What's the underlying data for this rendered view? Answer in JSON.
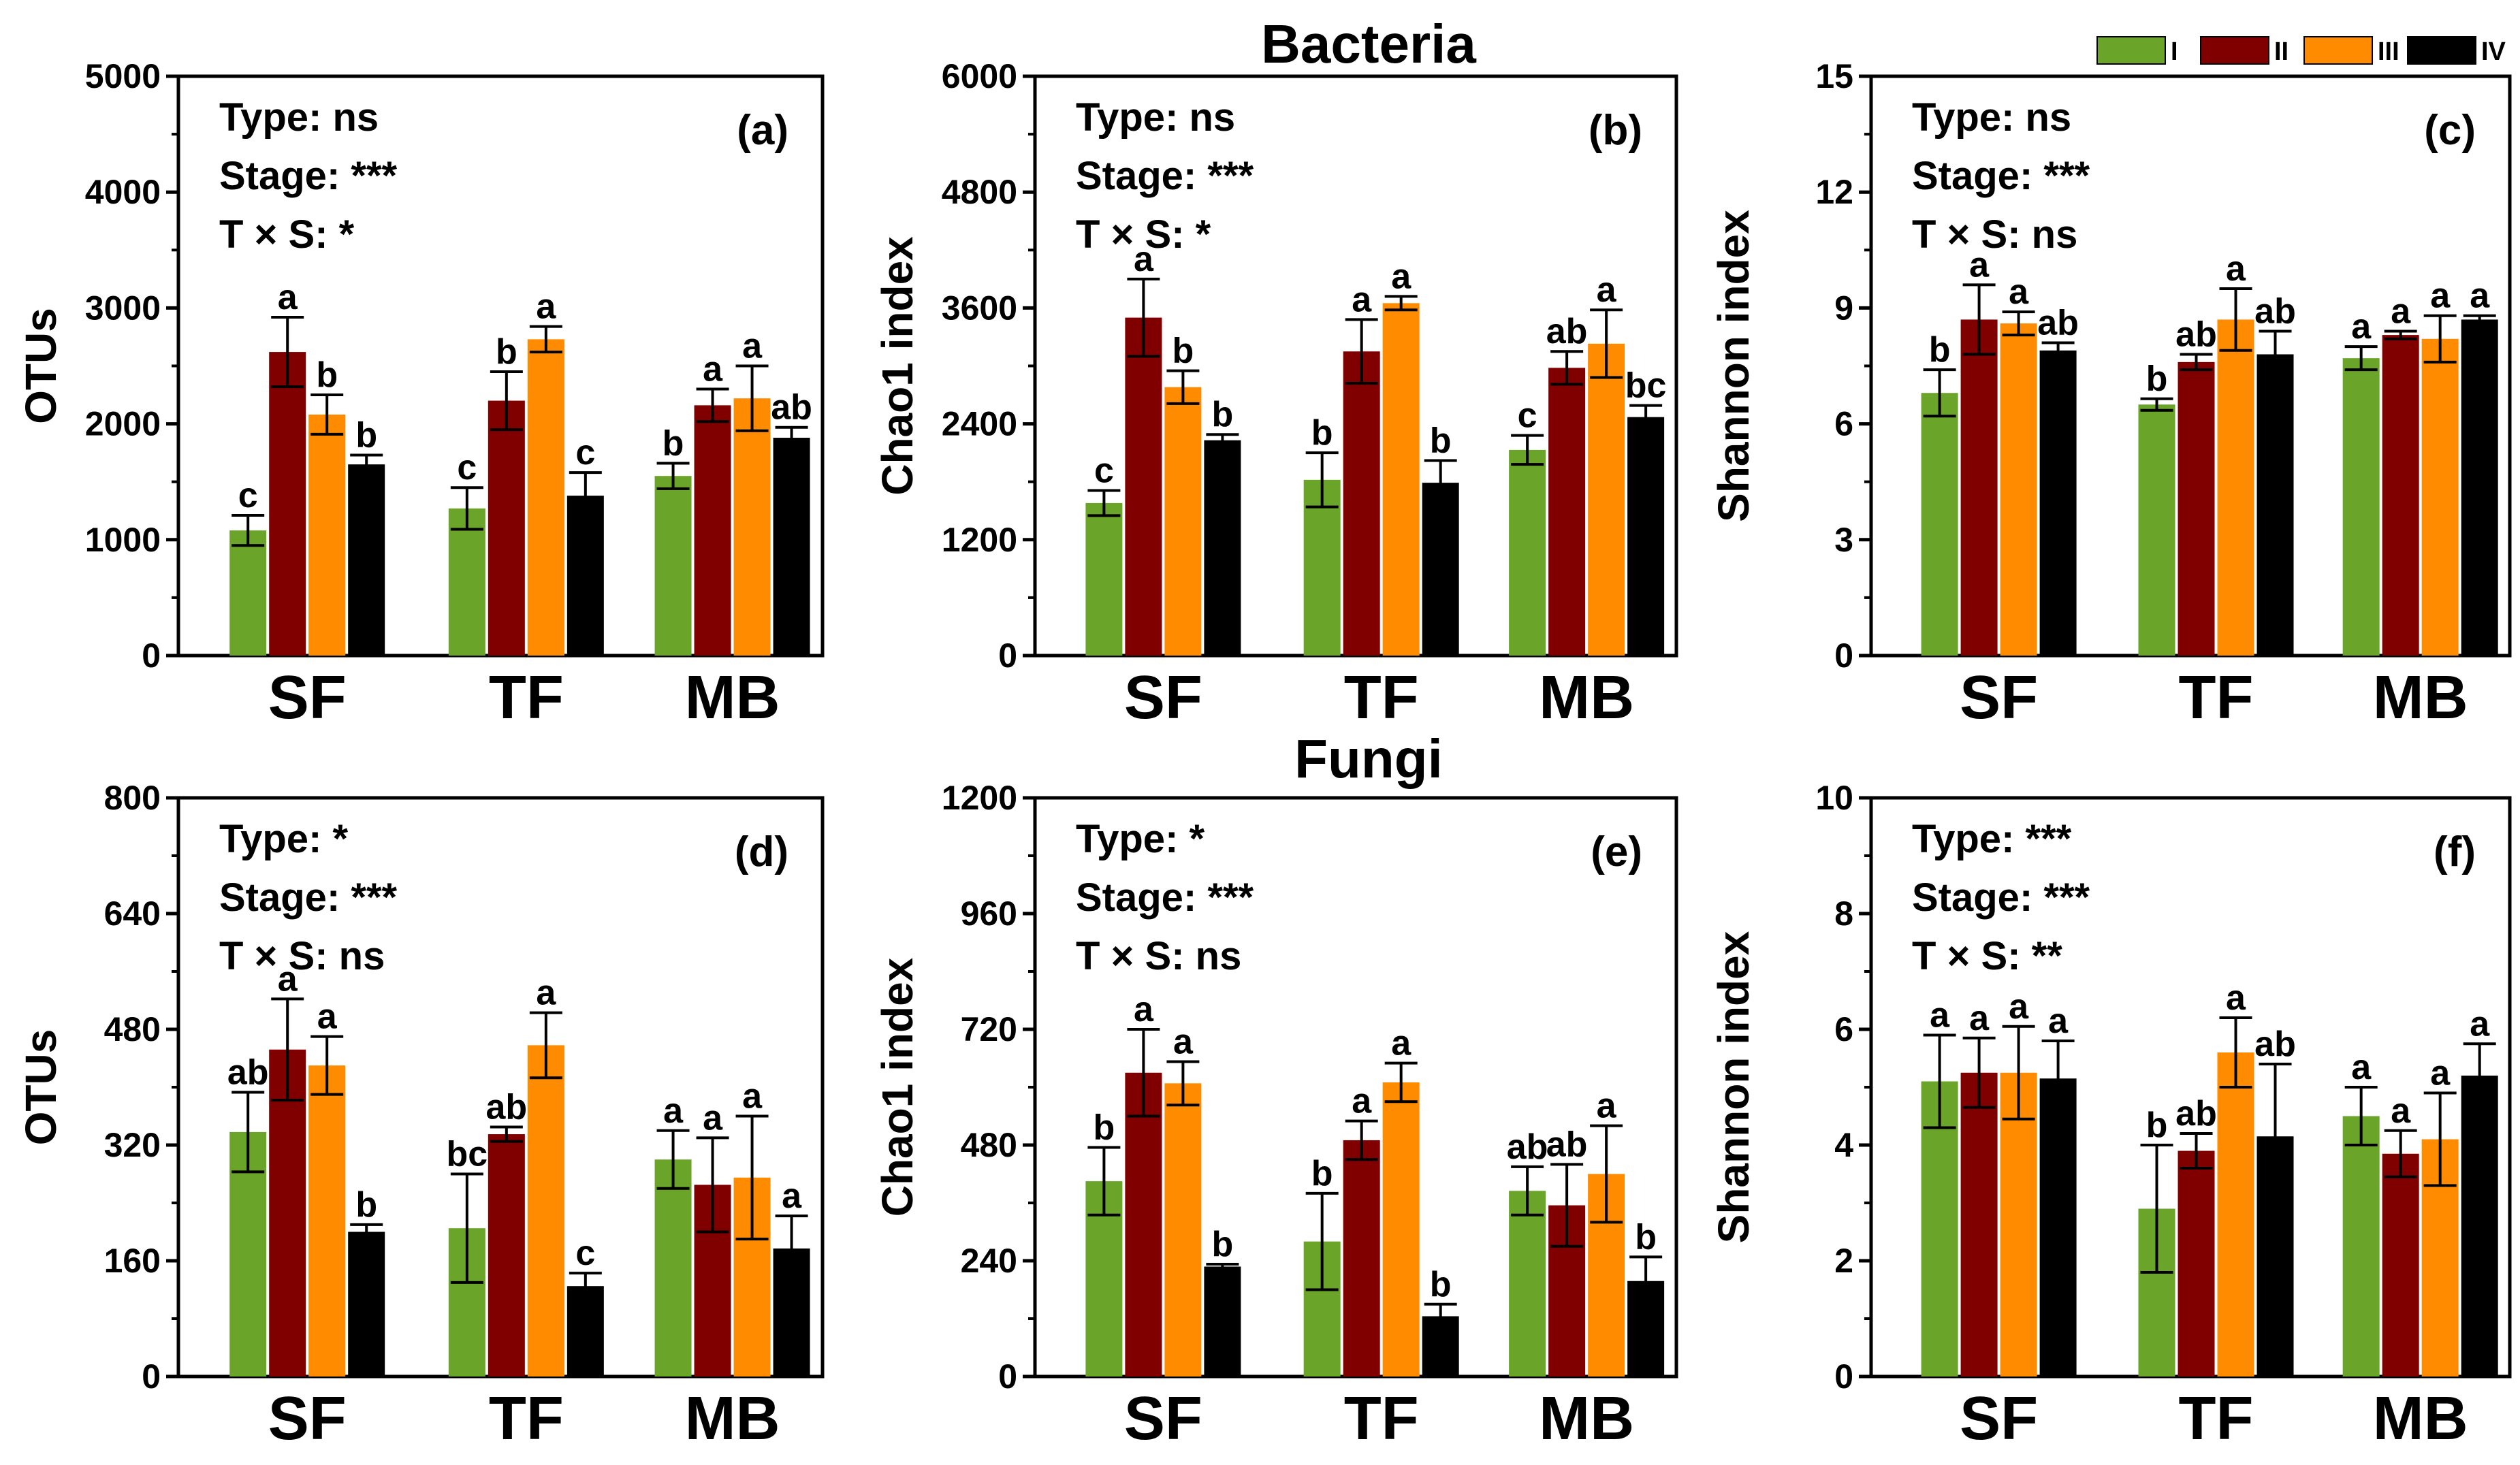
{
  "section_titles": {
    "bacteria": "Bacteria",
    "fungi": "Fungi"
  },
  "legend": [
    {
      "label": "I",
      "color": "#6aa52a"
    },
    {
      "label": "II",
      "color": "#800000"
    },
    {
      "label": "III",
      "color": "#ff8c00"
    },
    {
      "label": "IV",
      "color": "#000000"
    }
  ],
  "colors": {
    "I": "#6aa52a",
    "II": "#800000",
    "III": "#ff8c00",
    "IV": "#000000",
    "background": "#ffffff",
    "axis": "#000000"
  },
  "chart_data": [
    {
      "type": "bar",
      "panel": "(a)",
      "section": "Bacteria",
      "ylabel": "OTUs",
      "ylim": [
        0,
        5000
      ],
      "yticks": [
        "0",
        "1000",
        "2000",
        "3000",
        "4000",
        "5000"
      ],
      "categories": [
        "SF",
        "TF",
        "MB"
      ],
      "stats": [
        "Type: ns",
        "Stage: ***",
        "T × S: *"
      ],
      "series": [
        {
          "name": "I",
          "values": [
            1080,
            1270,
            1550
          ],
          "errors": [
            130,
            180,
            110
          ],
          "letters": [
            "c",
            "c",
            "b"
          ]
        },
        {
          "name": "II",
          "values": [
            2620,
            2200,
            2160
          ],
          "errors": [
            300,
            250,
            140
          ],
          "letters": [
            "a",
            "b",
            "a"
          ]
        },
        {
          "name": "III",
          "values": [
            2080,
            2730,
            2220
          ],
          "errors": [
            170,
            110,
            280
          ],
          "letters": [
            "b",
            "a",
            "a"
          ]
        },
        {
          "name": "IV",
          "values": [
            1650,
            1380,
            1880
          ],
          "errors": [
            80,
            200,
            90
          ],
          "letters": [
            "b",
            "c",
            "ab"
          ]
        }
      ]
    },
    {
      "type": "bar",
      "panel": "(b)",
      "section": "Bacteria",
      "ylabel": "Chao1 index",
      "ylim": [
        0,
        6000
      ],
      "yticks": [
        "0",
        "1200",
        "2400",
        "3600",
        "4800",
        "6000"
      ],
      "categories": [
        "SF",
        "TF",
        "MB"
      ],
      "stats": [
        "Type: ns",
        "Stage: ***",
        "T × S: *"
      ],
      "series": [
        {
          "name": "I",
          "values": [
            1580,
            1820,
            2130
          ],
          "errors": [
            130,
            280,
            150
          ],
          "letters": [
            "c",
            "b",
            "c"
          ]
        },
        {
          "name": "II",
          "values": [
            3500,
            3150,
            2980
          ],
          "errors": [
            400,
            330,
            170
          ],
          "letters": [
            "a",
            "a",
            "ab"
          ]
        },
        {
          "name": "III",
          "values": [
            2780,
            3650,
            3230
          ],
          "errors": [
            170,
            70,
            350
          ],
          "letters": [
            "b",
            "a",
            "a"
          ]
        },
        {
          "name": "IV",
          "values": [
            2230,
            1790,
            2470
          ],
          "errors": [
            60,
            230,
            120
          ],
          "letters": [
            "b",
            "b",
            "bc"
          ]
        }
      ]
    },
    {
      "type": "bar",
      "panel": "(c)",
      "section": "Bacteria",
      "ylabel": "Shannon index",
      "ylim": [
        0,
        15
      ],
      "yticks": [
        "0",
        "3",
        "6",
        "9",
        "12",
        "15"
      ],
      "categories": [
        "SF",
        "TF",
        "MB"
      ],
      "stats": [
        "Type: ns",
        "Stage: ***",
        "T × S: ns"
      ],
      "series": [
        {
          "name": "I",
          "values": [
            6.8,
            6.5,
            7.7
          ],
          "errors": [
            0.6,
            0.15,
            0.3
          ],
          "letters": [
            "b",
            "b",
            "a"
          ]
        },
        {
          "name": "II",
          "values": [
            8.7,
            7.6,
            8.3
          ],
          "errors": [
            0.9,
            0.2,
            0.1
          ],
          "letters": [
            "a",
            "ab",
            "a"
          ]
        },
        {
          "name": "III",
          "values": [
            8.6,
            8.7,
            8.2
          ],
          "errors": [
            0.3,
            0.8,
            0.6
          ],
          "letters": [
            "a",
            "a",
            "a"
          ]
        },
        {
          "name": "IV",
          "values": [
            7.9,
            7.8,
            8.7
          ],
          "errors": [
            0.2,
            0.6,
            0.1
          ],
          "letters": [
            "ab",
            "ab",
            "a"
          ]
        }
      ]
    },
    {
      "type": "bar",
      "panel": "(d)",
      "section": "Fungi",
      "ylabel": "OTUs",
      "ylim": [
        0,
        800
      ],
      "yticks": [
        "0",
        "160",
        "320",
        "480",
        "640",
        "800"
      ],
      "categories": [
        "SF",
        "TF",
        "MB"
      ],
      "stats": [
        "Type: *",
        "Stage: ***",
        "T × S: ns"
      ],
      "series": [
        {
          "name": "I",
          "values": [
            338,
            205,
            300
          ],
          "errors": [
            55,
            75,
            40
          ],
          "letters": [
            "ab",
            "bc",
            "a"
          ]
        },
        {
          "name": "II",
          "values": [
            452,
            335,
            265
          ],
          "errors": [
            70,
            10,
            65
          ],
          "letters": [
            "a",
            "ab",
            "a"
          ]
        },
        {
          "name": "III",
          "values": [
            430,
            458,
            275
          ],
          "errors": [
            40,
            45,
            85
          ],
          "letters": [
            "a",
            "a",
            "a"
          ]
        },
        {
          "name": "IV",
          "values": [
            200,
            125,
            177
          ],
          "errors": [
            10,
            18,
            45
          ],
          "letters": [
            "b",
            "c",
            "a"
          ]
        }
      ]
    },
    {
      "type": "bar",
      "panel": "(e)",
      "section": "Fungi",
      "ylabel": "Chao1 index",
      "ylim": [
        0,
        1200
      ],
      "yticks": [
        "0",
        "240",
        "480",
        "720",
        "960",
        "1200"
      ],
      "categories": [
        "SF",
        "TF",
        "MB"
      ],
      "stats": [
        "Type: *",
        "Stage: ***",
        "T × S: ns"
      ],
      "series": [
        {
          "name": "I",
          "values": [
            405,
            280,
            385
          ],
          "errors": [
            70,
            100,
            50
          ],
          "letters": [
            "b",
            "b",
            "ab"
          ]
        },
        {
          "name": "II",
          "values": [
            630,
            490,
            355
          ],
          "errors": [
            90,
            40,
            85
          ],
          "letters": [
            "a",
            "a",
            "ab"
          ]
        },
        {
          "name": "III",
          "values": [
            608,
            610,
            420
          ],
          "errors": [
            45,
            40,
            100
          ],
          "letters": [
            "a",
            "a",
            "a"
          ]
        },
        {
          "name": "IV",
          "values": [
            228,
            125,
            198
          ],
          "errors": [
            5,
            25,
            50
          ],
          "letters": [
            "b",
            "b",
            "b"
          ]
        }
      ]
    },
    {
      "type": "bar",
      "panel": "(f)",
      "section": "Fungi",
      "ylabel": "Shannon index",
      "ylim": [
        0,
        10
      ],
      "yticks": [
        "0",
        "2",
        "4",
        "6",
        "8",
        "10"
      ],
      "categories": [
        "SF",
        "TF",
        "MB"
      ],
      "stats": [
        "Type: ***",
        "Stage: ***",
        "T × S: **"
      ],
      "series": [
        {
          "name": "I",
          "values": [
            5.1,
            2.9,
            4.5
          ],
          "errors": [
            0.8,
            1.1,
            0.5
          ],
          "letters": [
            "a",
            "b",
            "a"
          ]
        },
        {
          "name": "II",
          "values": [
            5.25,
            3.9,
            3.85
          ],
          "errors": [
            0.6,
            0.3,
            0.4
          ],
          "letters": [
            "a",
            "ab",
            "a"
          ]
        },
        {
          "name": "III",
          "values": [
            5.25,
            5.6,
            4.1
          ],
          "errors": [
            0.8,
            0.6,
            0.8
          ],
          "letters": [
            "a",
            "a",
            "a"
          ]
        },
        {
          "name": "IV",
          "values": [
            5.15,
            4.15,
            5.2
          ],
          "errors": [
            0.65,
            1.25,
            0.55
          ],
          "letters": [
            "a",
            "ab",
            "a"
          ]
        }
      ]
    }
  ]
}
